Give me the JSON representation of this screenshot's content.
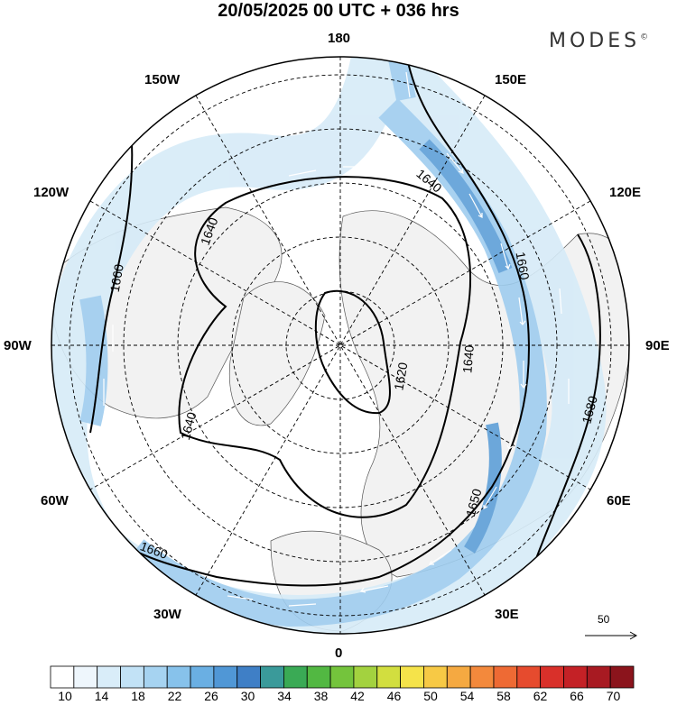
{
  "title": "20/05/2025  00 UTC  + 036 hrs",
  "brand": {
    "name": "MODES",
    "mark": "©"
  },
  "longitude_labels": {
    "l180": "180",
    "l150w": "150W",
    "l150e": "150E",
    "l120w": "120W",
    "l120e": "120E",
    "l90w": "90W",
    "l90e": "90E",
    "l60w": "60W",
    "l60e": "60E",
    "l30w": "30W",
    "l30e": "30E",
    "l0": "0"
  },
  "contours": {
    "c1620": "1620",
    "c1640a": "1640",
    "c1640b": "1640",
    "c1640c": "1640",
    "c1640d": "1640",
    "c1660a": "1660",
    "c1660b": "1660",
    "c1660c": "1660",
    "c1650": "1650",
    "c1680": "1680"
  },
  "reference_vector": {
    "value": "50"
  },
  "colorbar": {
    "labels": [
      "10",
      "14",
      "18",
      "22",
      "26",
      "30",
      "34",
      "38",
      "42",
      "46",
      "50",
      "54",
      "58",
      "62",
      "66",
      "70"
    ],
    "colors": [
      "#ffffff",
      "#eef6fc",
      "#d9edf9",
      "#c2e2f6",
      "#a6d3f1",
      "#87c2eb",
      "#6aafe3",
      "#5097d6",
      "#3f7fc6",
      "#3a9a9a",
      "#3aaa55",
      "#52b842",
      "#74c43c",
      "#a3d23f",
      "#d2de3f",
      "#f5e34a",
      "#f7c945",
      "#f5a941",
      "#f3893c",
      "#ee6a34",
      "#e64b2e",
      "#d9302a",
      "#c42126",
      "#a81a22",
      "#8b141c"
    ]
  },
  "map_colors": {
    "land": "#f2f2f2",
    "jet_light": "#d6ebf8",
    "jet_mid": "#9fcdef",
    "jet_dark": "#5e9fd8",
    "coast": "#555555"
  }
}
